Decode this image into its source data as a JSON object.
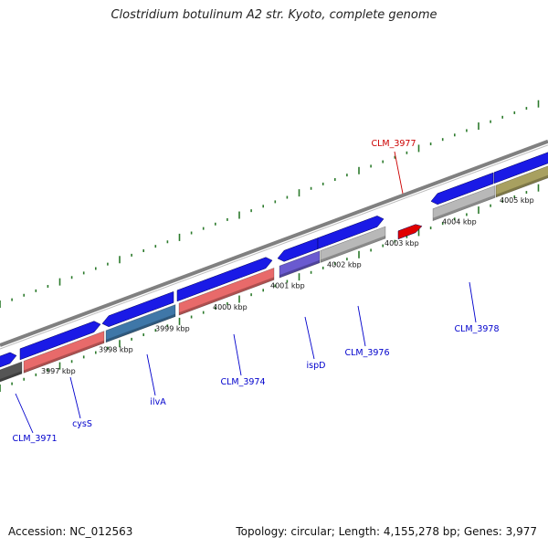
{
  "title": "Clostridium botulinum A2 str. Kyoto, complete genome",
  "footer": {
    "accession_label": "Accession: NC_012563",
    "summary": "Topology: circular; Length: 4,155,278 bp; Genes: 3,977"
  },
  "colors": {
    "cds_forward": "#1a1ae6",
    "cds_reverse_pink": "#e86a6a",
    "cds_steelblue": "#3f77a8",
    "cds_purple": "#6a5ad0",
    "cds_gray": "#b8b8b8",
    "cds_olive": "#a8a060",
    "cds_darkgray": "#555555",
    "rna": "#e00000",
    "tick": "#2b7a2b",
    "backbone": "#808080",
    "label_blue": "#0000cc",
    "label_red": "#cc0000"
  },
  "ticks": [
    {
      "label": "3997 kbp"
    },
    {
      "label": "3998 kbp"
    },
    {
      "label": "3999 kbp"
    },
    {
      "label": "4000 kbp"
    },
    {
      "label": "4001 kbp"
    },
    {
      "label": "4002 kbp"
    },
    {
      "label": "4003 kbp"
    },
    {
      "label": "4004 kbp"
    },
    {
      "label": "4005 kbp"
    }
  ],
  "gene_labels": [
    {
      "name": "CLM_3971",
      "color": "#0000cc"
    },
    {
      "name": "cysS",
      "color": "#0000cc"
    },
    {
      "name": "ilvA",
      "color": "#0000cc"
    },
    {
      "name": "CLM_3974",
      "color": "#0000cc"
    },
    {
      "name": "ispD",
      "color": "#0000cc"
    },
    {
      "name": "CLM_3976",
      "color": "#0000cc"
    },
    {
      "name": "CLM_3978",
      "color": "#0000cc"
    },
    {
      "name": "CLM_3977",
      "color": "#cc0000"
    }
  ]
}
